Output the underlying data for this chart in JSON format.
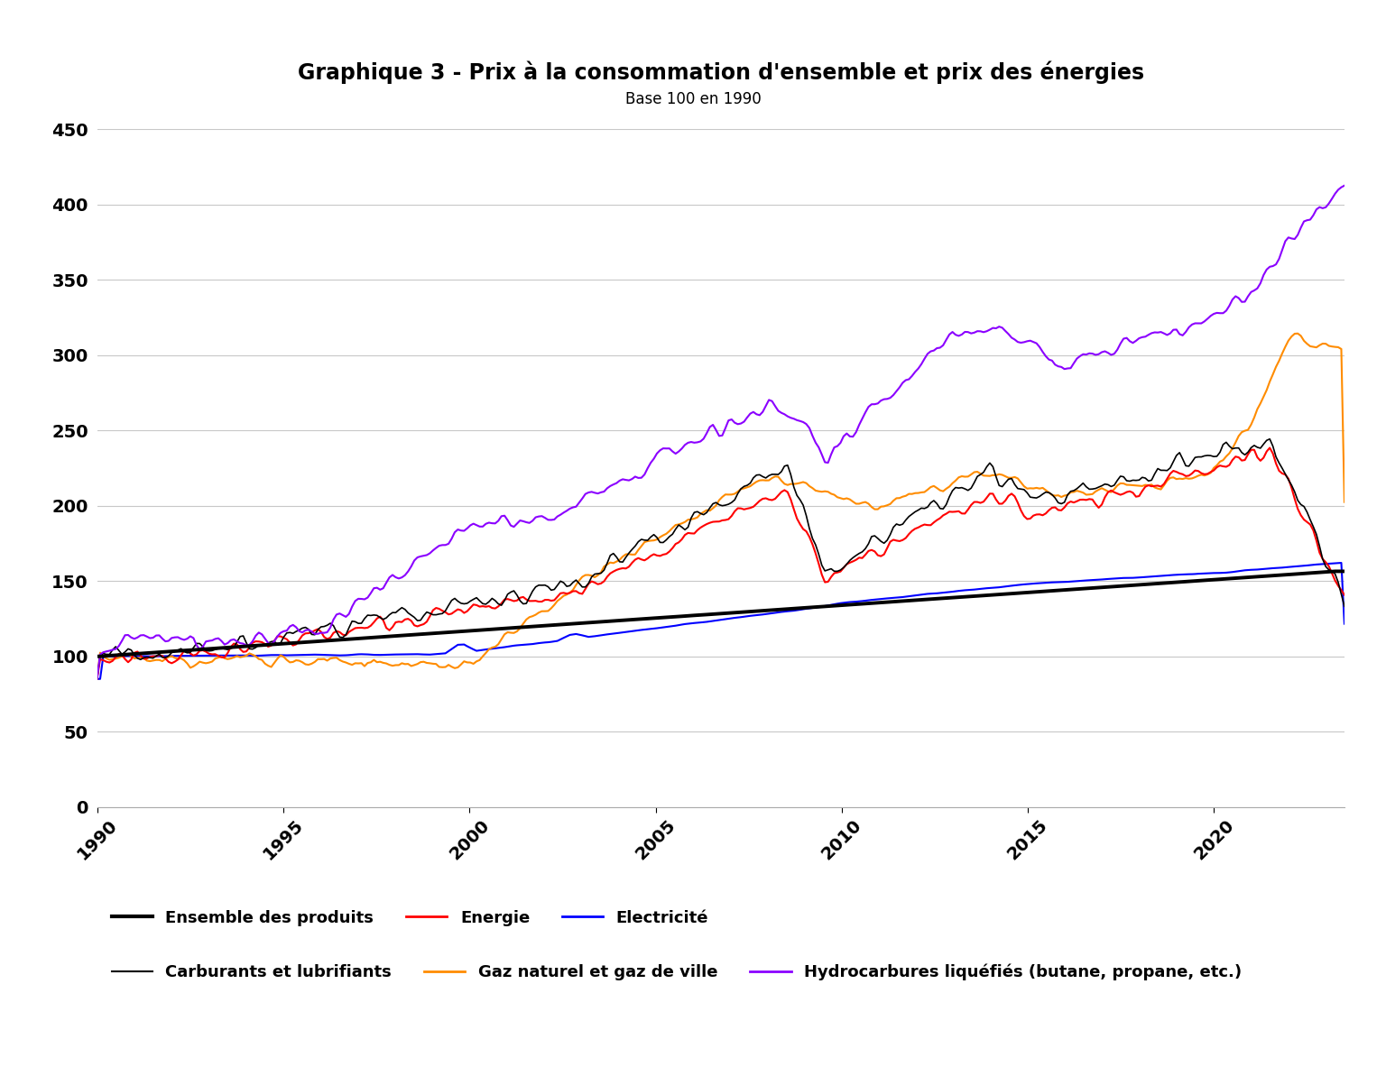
{
  "title": "Graphique 3 - Prix à la consommation d'ensemble et prix des énergies",
  "subtitle": "Base 100 en 1990",
  "ylim": [
    0,
    450
  ],
  "yticks": [
    0,
    50,
    100,
    150,
    200,
    250,
    300,
    350,
    400,
    450
  ],
  "xlim_start": 1990.0,
  "xlim_end": 2023.5,
  "xticks": [
    1990,
    1995,
    2000,
    2005,
    2010,
    2015,
    2020
  ],
  "background_color": "#ffffff",
  "plot_bg_color": "#ffffff",
  "grid_color": "#c8c8c8",
  "series": {
    "ensemble": {
      "label": "Ensemble des produits",
      "color": "#000000",
      "linewidth": 2.8
    },
    "energie": {
      "label": "Energie",
      "color": "#ff0000",
      "linewidth": 1.5
    },
    "electricite": {
      "label": "Electricité",
      "color": "#0000ff",
      "linewidth": 1.5
    },
    "carburants": {
      "label": "Carburants et lubrifiants",
      "color": "#000000",
      "linewidth": 1.2
    },
    "gaz": {
      "label": "Gaz naturel et gaz de ville",
      "color": "#ff8c00",
      "linewidth": 1.5
    },
    "hydrocarbures": {
      "label": "Hydrocarbures liquéfiés (butane, propane, etc.)",
      "color": "#8b00ff",
      "linewidth": 1.5
    }
  }
}
